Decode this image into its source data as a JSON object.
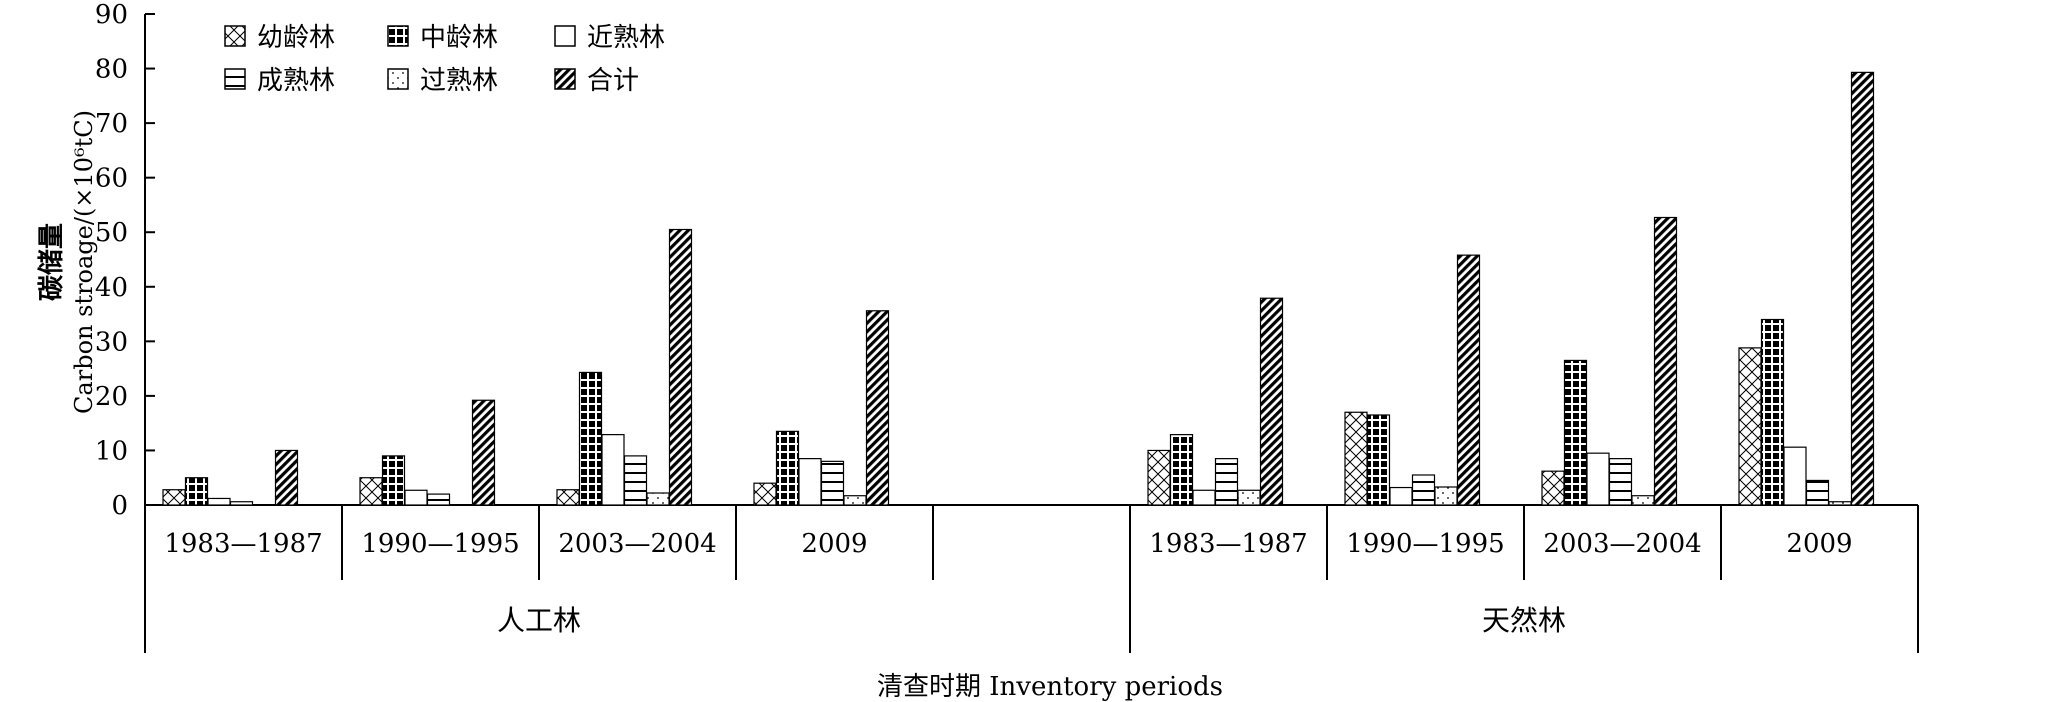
{
  "chart_data": {
    "type": "bar",
    "ylabel_cn": "碳储量",
    "ylabel_en": "Carbon stroage/(×10⁶tC)",
    "xlabel": "清查时期 Inventory periods",
    "ylim": [
      0,
      90
    ],
    "yticks": [
      "0",
      "10",
      "20",
      "30",
      "40",
      "50",
      "60",
      "70",
      "80",
      "90"
    ],
    "legend_position": "top-left",
    "groups": [
      {
        "name": "人工林",
        "periods": [
          "1983—1987",
          "1990—1995",
          "2003—2004",
          "2009",
          ""
        ]
      },
      {
        "name": "天然林",
        "periods": [
          "1983—1987",
          "1990—1995",
          "2003—2004",
          "2009"
        ]
      }
    ],
    "series": [
      {
        "name": "幼龄林",
        "pattern": "cross",
        "values": [
          2.8,
          5.0,
          2.8,
          4.0,
          null,
          10.0,
          17.0,
          6.2,
          28.8
        ]
      },
      {
        "name": "中龄林",
        "pattern": "grid",
        "values": [
          5.0,
          9.0,
          24.3,
          13.5,
          null,
          12.9,
          16.5,
          26.5,
          34.0
        ]
      },
      {
        "name": "近熟林",
        "pattern": "blank",
        "values": [
          1.2,
          2.7,
          12.9,
          8.5,
          null,
          2.7,
          3.2,
          9.5,
          10.6
        ]
      },
      {
        "name": "成熟林",
        "pattern": "horizontal",
        "values": [
          0.6,
          2.0,
          9.0,
          8.0,
          null,
          8.5,
          5.5,
          8.5,
          4.5
        ]
      },
      {
        "name": "过熟林",
        "pattern": "dots",
        "values": [
          0.0,
          0.0,
          2.2,
          1.7,
          null,
          2.7,
          3.3,
          1.7,
          0.6
        ]
      },
      {
        "name": "合计",
        "pattern": "diagonal",
        "values": [
          10.0,
          19.2,
          50.5,
          35.6,
          null,
          37.9,
          45.8,
          52.7,
          79.3
        ]
      }
    ]
  }
}
